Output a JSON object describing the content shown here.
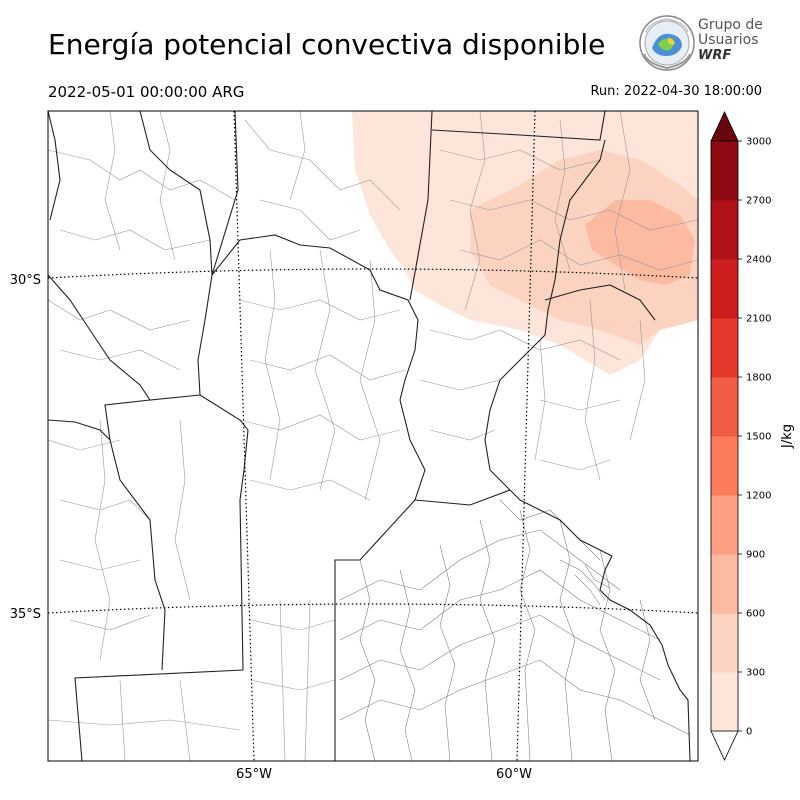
{
  "header": {
    "title": "Energía potencial convectiva disponible",
    "valid_time": "2022-05-01 00:00:00 ARG",
    "run_time": "Run: 2022-04-30 18:00:00"
  },
  "logo": {
    "line1": "Grupo de",
    "line2": "Usuarios",
    "line3": "WRF"
  },
  "map": {
    "lat_labels": [
      "30°S",
      "35°S"
    ],
    "lon_labels": [
      "65°W",
      "60°W"
    ]
  },
  "colorbar": {
    "unit_label": "J/kg",
    "ticks": [
      "0",
      "300",
      "600",
      "900",
      "1200",
      "1500",
      "1800",
      "2100",
      "2400",
      "2700",
      "3000"
    ],
    "levels": [
      0,
      300,
      600,
      900,
      1200,
      1500,
      1800,
      2100,
      2400,
      2700,
      3000
    ],
    "colors": [
      "#fee5d9",
      "#fcd2c1",
      "#fcbba1",
      "#fc9f82",
      "#fb7b5b",
      "#f15c44",
      "#e6392e",
      "#ce1d1f",
      "#b11218",
      "#8e0b14"
    ],
    "extend_color": "#6a0610"
  }
}
